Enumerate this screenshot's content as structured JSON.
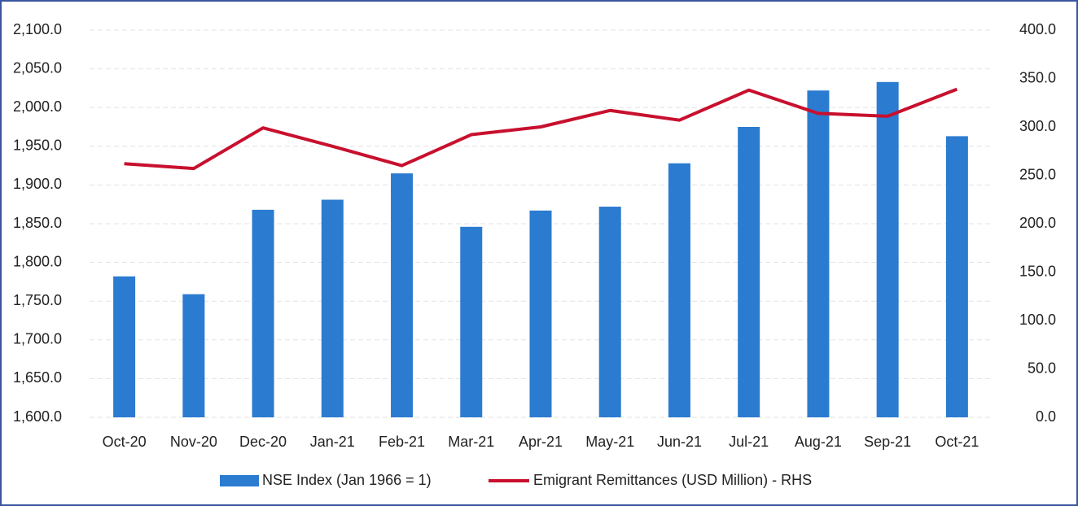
{
  "chart_data": {
    "type": "bar",
    "categories": [
      "Oct-20",
      "Nov-20",
      "Dec-20",
      "Jan-21",
      "Feb-21",
      "Mar-21",
      "Apr-21",
      "May-21",
      "Jun-21",
      "Jul-21",
      "Aug-21",
      "Sep-21",
      "Oct-21"
    ],
    "series": [
      {
        "name": "NSE Index (Jan 1966 = 1)",
        "type": "bar",
        "color": "#2b7bd0",
        "values": [
          1782,
          1759,
          1868,
          1881,
          1915,
          1846,
          1867,
          1872,
          1928,
          1975,
          2022,
          2033,
          1963
        ]
      },
      {
        "name": "Emigrant Remittances (USD Million) - RHS",
        "type": "line",
        "axis": "y2",
        "color": "#c8102e",
        "values": [
          262,
          257,
          299,
          280,
          260,
          292,
          300,
          317,
          307,
          338,
          314,
          311,
          339
        ]
      }
    ],
    "ylim": [
      1600,
      2100
    ],
    "yticks": [
      {
        "value": 1600,
        "label": "1,600.0"
      },
      {
        "value": 1650,
        "label": "1,650.0"
      },
      {
        "value": 1700,
        "label": "1,700.0"
      },
      {
        "value": 1750,
        "label": "1,750.0"
      },
      {
        "value": 1800,
        "label": "1,800.0"
      },
      {
        "value": 1850,
        "label": "1,850.0"
      },
      {
        "value": 1900,
        "label": "1,900.0"
      },
      {
        "value": 1950,
        "label": "1,950.0"
      },
      {
        "value": 2000,
        "label": "2,000.0"
      },
      {
        "value": 2050,
        "label": "2,050.0"
      },
      {
        "value": 2100,
        "label": "2,100.0"
      }
    ],
    "y2lim": [
      0,
      400
    ],
    "y2ticks": [
      {
        "value": 0,
        "label": "0.0"
      },
      {
        "value": 50,
        "label": "50.0"
      },
      {
        "value": 100,
        "label": "100.0"
      },
      {
        "value": 150,
        "label": "150.0"
      },
      {
        "value": 200,
        "label": "200.0"
      },
      {
        "value": 250,
        "label": "250.0"
      },
      {
        "value": 300,
        "label": "300.0"
      },
      {
        "value": 350,
        "label": "350.0"
      },
      {
        "value": 400,
        "label": "400.0"
      }
    ],
    "grid": true,
    "legend": "bottom"
  }
}
